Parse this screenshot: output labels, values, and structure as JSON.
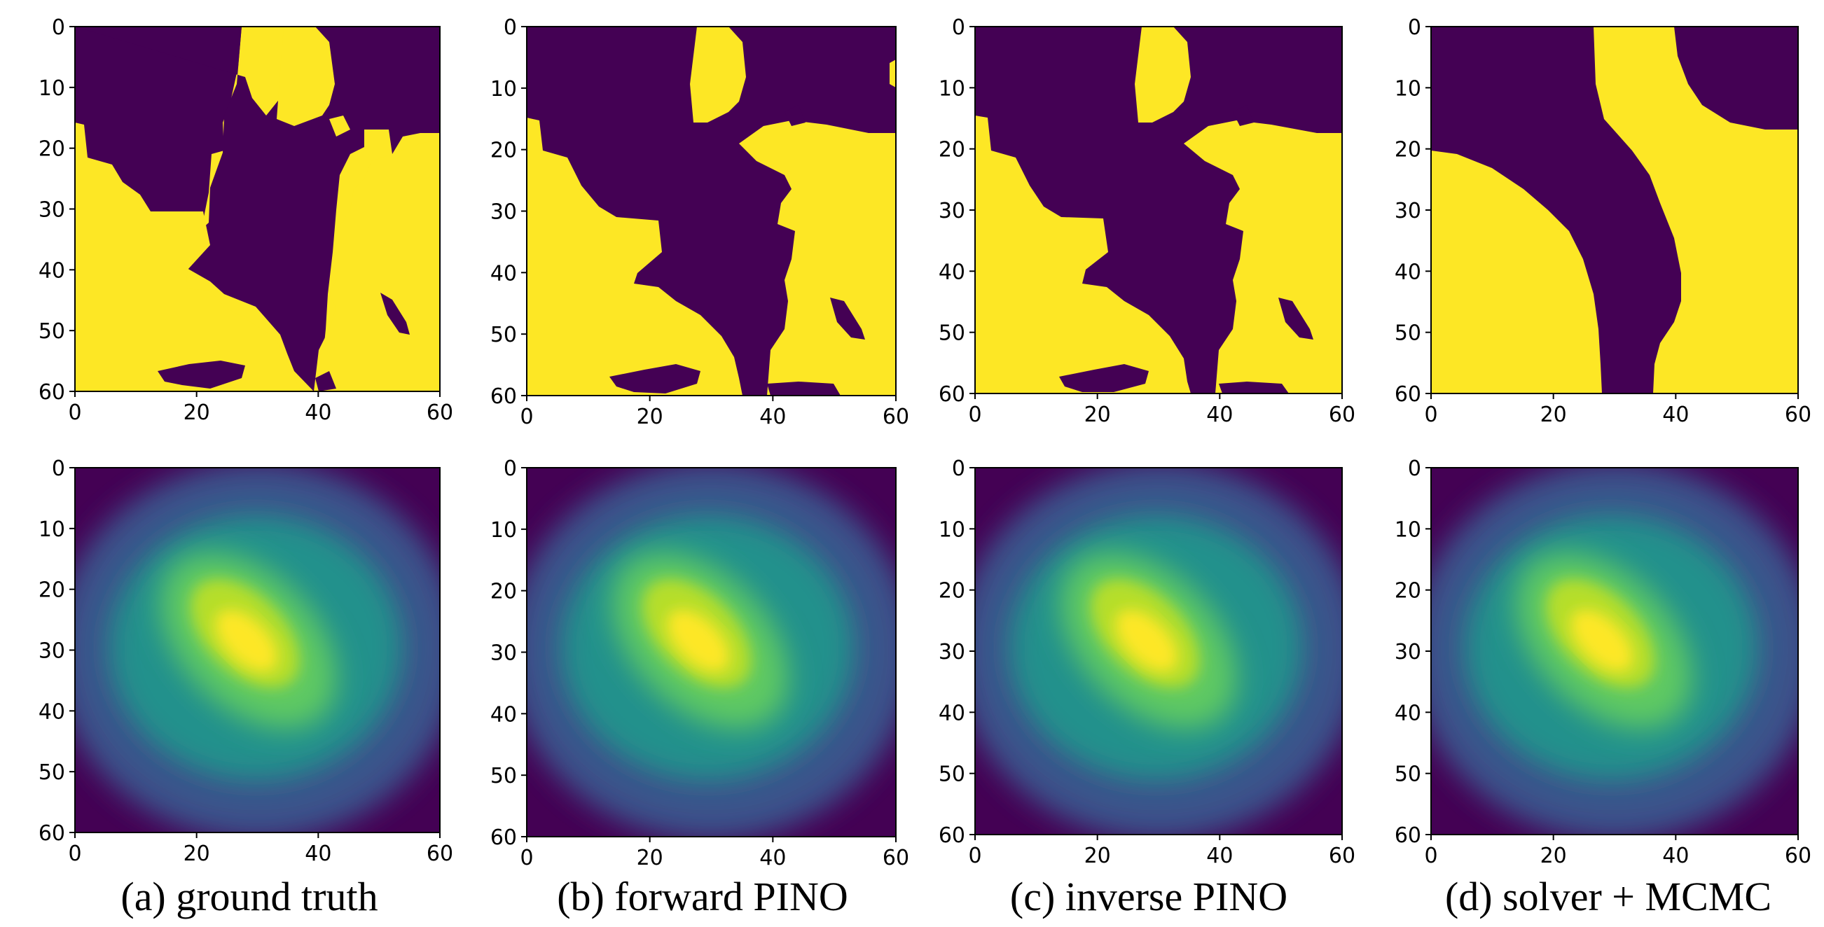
{
  "figure": {
    "panels": [
      {
        "caption": "(a) ground truth"
      },
      {
        "caption": "(b) forward PINO"
      },
      {
        "caption": "(c) inverse PINO"
      },
      {
        "caption": "(d) solver + MCMC"
      }
    ]
  },
  "chart_data": [
    {
      "type": "heatmap",
      "row": "top",
      "column": "(a)",
      "colormap": "viridis",
      "binary": true,
      "colors": [
        "#440154",
        "#fde725"
      ],
      "grid_size": [
        61,
        61
      ],
      "xlim": [
        0,
        60
      ],
      "ylim": [
        60,
        0
      ],
      "xticks": [
        0,
        20,
        40,
        60
      ],
      "yticks": [
        0,
        10,
        20,
        30,
        40,
        50,
        60
      ],
      "xtick_labels": [
        "0",
        "20",
        "40",
        "60"
      ],
      "ytick_labels": [
        "0",
        "10",
        "20",
        "30",
        "40",
        "50",
        "60"
      ]
    },
    {
      "type": "heatmap",
      "row": "top",
      "column": "(b)",
      "colormap": "viridis",
      "binary": true,
      "colors": [
        "#440154",
        "#fde725"
      ],
      "grid_size": [
        61,
        61
      ],
      "xlim": [
        0,
        60
      ],
      "ylim": [
        60,
        0
      ],
      "xticks": [
        0,
        20,
        40,
        60
      ],
      "yticks": [
        0,
        10,
        20,
        30,
        40,
        50,
        60
      ],
      "xtick_labels": [
        "0",
        "20",
        "40",
        "60"
      ],
      "ytick_labels": [
        "0",
        "10",
        "20",
        "30",
        "40",
        "50",
        "60"
      ]
    },
    {
      "type": "heatmap",
      "row": "top",
      "column": "(c)",
      "colormap": "viridis",
      "binary": true,
      "colors": [
        "#440154",
        "#fde725"
      ],
      "grid_size": [
        61,
        61
      ],
      "xlim": [
        0,
        60
      ],
      "ylim": [
        60,
        0
      ],
      "xticks": [
        0,
        20,
        40,
        60
      ],
      "yticks": [
        0,
        10,
        20,
        30,
        40,
        50,
        60
      ],
      "xtick_labels": [
        "0",
        "20",
        "40",
        "60"
      ],
      "ytick_labels": [
        "0",
        "10",
        "20",
        "30",
        "40",
        "50",
        "60"
      ]
    },
    {
      "type": "heatmap",
      "row": "top",
      "column": "(d)",
      "colormap": "viridis",
      "binary": true,
      "colors": [
        "#440154",
        "#fde725"
      ],
      "grid_size": [
        61,
        61
      ],
      "xlim": [
        0,
        60
      ],
      "ylim": [
        60,
        0
      ],
      "xticks": [
        0,
        20,
        40,
        60
      ],
      "yticks": [
        0,
        10,
        20,
        30,
        40,
        50,
        60
      ],
      "xtick_labels": [
        "0",
        "20",
        "40",
        "60"
      ],
      "ytick_labels": [
        "0",
        "10",
        "20",
        "30",
        "40",
        "50",
        "60"
      ]
    },
    {
      "type": "heatmap",
      "row": "bottom",
      "column": "(a)",
      "colormap": "viridis",
      "grid_size": [
        61,
        61
      ],
      "peak_at": [
        30,
        30
      ],
      "xlim": [
        0,
        60
      ],
      "ylim": [
        60,
        0
      ],
      "xticks": [
        0,
        20,
        40,
        60
      ],
      "yticks": [
        0,
        10,
        20,
        30,
        40,
        50,
        60
      ],
      "xtick_labels": [
        "0",
        "20",
        "40",
        "60"
      ],
      "ytick_labels": [
        "0",
        "10",
        "20",
        "30",
        "40",
        "50",
        "60"
      ]
    },
    {
      "type": "heatmap",
      "row": "bottom",
      "column": "(b)",
      "colormap": "viridis",
      "grid_size": [
        61,
        61
      ],
      "peak_at": [
        30,
        30
      ],
      "xlim": [
        0,
        60
      ],
      "ylim": [
        60,
        0
      ],
      "xticks": [
        0,
        20,
        40,
        60
      ],
      "yticks": [
        0,
        10,
        20,
        30,
        40,
        50,
        60
      ],
      "xtick_labels": [
        "0",
        "20",
        "40",
        "60"
      ],
      "ytick_labels": [
        "0",
        "10",
        "20",
        "30",
        "40",
        "50",
        "60"
      ]
    },
    {
      "type": "heatmap",
      "row": "bottom",
      "column": "(c)",
      "colormap": "viridis",
      "grid_size": [
        61,
        61
      ],
      "peak_at": [
        30,
        30
      ],
      "xlim": [
        0,
        60
      ],
      "ylim": [
        60,
        0
      ],
      "xticks": [
        0,
        20,
        40,
        60
      ],
      "yticks": [
        0,
        10,
        20,
        30,
        40,
        50,
        60
      ],
      "xtick_labels": [
        "0",
        "20",
        "40",
        "60"
      ],
      "ytick_labels": [
        "0",
        "10",
        "20",
        "30",
        "40",
        "50",
        "60"
      ]
    },
    {
      "type": "heatmap",
      "row": "bottom",
      "column": "(d)",
      "colormap": "viridis",
      "grid_size": [
        61,
        61
      ],
      "peak_at": [
        30,
        30
      ],
      "xlim": [
        0,
        60
      ],
      "ylim": [
        60,
        0
      ],
      "xticks": [
        0,
        20,
        40,
        60
      ],
      "yticks": [
        0,
        10,
        20,
        30,
        40,
        50,
        60
      ],
      "xtick_labels": [
        "0",
        "20",
        "40",
        "60"
      ],
      "ytick_labels": [
        "0",
        "10",
        "20",
        "30",
        "40",
        "50",
        "60"
      ]
    }
  ]
}
